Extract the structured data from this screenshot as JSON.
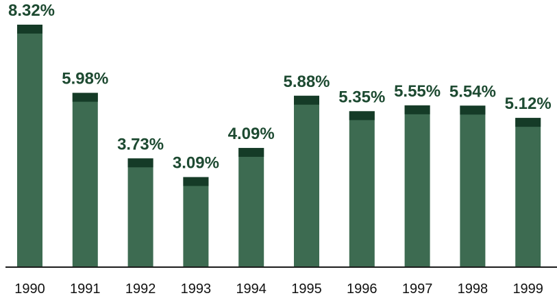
{
  "chart_data": {
    "type": "bar",
    "categories": [
      "1990",
      "1991",
      "1992",
      "1993",
      "1994",
      "1995",
      "1996",
      "1997",
      "1998",
      "1999"
    ],
    "values": [
      8.32,
      5.98,
      3.73,
      3.09,
      4.09,
      5.88,
      5.35,
      5.55,
      5.54,
      5.12
    ],
    "value_labels": [
      "8.32%",
      "5.98%",
      "3.73%",
      "3.09%",
      "4.09%",
      "5.88%",
      "5.35%",
      "5.55%",
      "5.54%",
      "5.12%"
    ],
    "color": "#3d6b51"
  }
}
